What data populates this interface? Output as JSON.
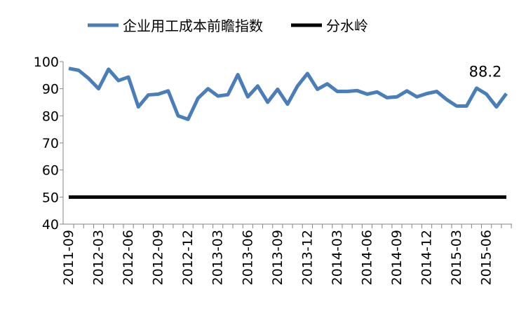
{
  "chart_data": {
    "type": "line",
    "categories": [
      "2011-09",
      null,
      null,
      "2012-03",
      null,
      null,
      "2012-06",
      null,
      null,
      "2012-09",
      null,
      null,
      "2012-12",
      null,
      null,
      "2013-03",
      null,
      null,
      "2013-06",
      null,
      null,
      "2013-09",
      null,
      null,
      "2013-12",
      null,
      null,
      "2014-03",
      null,
      null,
      "2014-06",
      null,
      null,
      "2014-09",
      null,
      null,
      "2014-12",
      null,
      null,
      "2015-03",
      null,
      null,
      "2015-06",
      null,
      null
    ],
    "series": [
      {
        "name": "企业用工成本前瞻指数",
        "color": "#4a7ebb",
        "values": [
          97.5,
          96.8,
          93.8,
          90,
          97.2,
          93,
          94.3,
          83.3,
          87.7,
          88,
          89.2,
          80,
          78.7,
          86.5,
          90,
          87.3,
          87.8,
          95.2,
          87,
          91,
          85,
          89.8,
          84.3,
          91,
          95.6,
          89.8,
          91.8,
          89,
          89,
          89.3,
          88,
          88.8,
          86.7,
          87,
          89.2,
          87,
          88.2,
          89,
          86,
          83.6,
          83.6,
          90.2,
          88,
          83.3,
          88.2
        ],
        "value_labels": [
          null,
          null,
          null,
          null,
          null,
          null,
          null,
          null,
          null,
          null,
          null,
          null,
          null,
          null,
          null,
          null,
          null,
          null,
          null,
          null,
          null,
          null,
          null,
          null,
          null,
          null,
          null,
          null,
          null,
          null,
          null,
          null,
          null,
          null,
          null,
          null,
          null,
          null,
          null,
          null,
          null,
          null,
          null,
          null,
          "88.2"
        ],
        "label_color": "#ff0000"
      },
      {
        "name": "分水岭",
        "color": "#000000",
        "values": [
          50,
          50,
          50,
          50,
          50,
          50,
          50,
          50,
          50,
          50,
          50,
          50,
          50,
          50,
          50,
          50,
          50,
          50,
          50,
          50,
          50,
          50,
          50,
          50,
          50,
          50,
          50,
          50,
          50,
          50,
          50,
          50,
          50,
          50,
          50,
          50,
          50,
          50,
          50,
          50,
          50,
          50,
          50,
          50,
          50
        ]
      }
    ],
    "ylim": [
      40,
      100
    ],
    "yticks": [
      40,
      50,
      60,
      70,
      80,
      90,
      100
    ],
    "grid": false,
    "legend": "top"
  }
}
